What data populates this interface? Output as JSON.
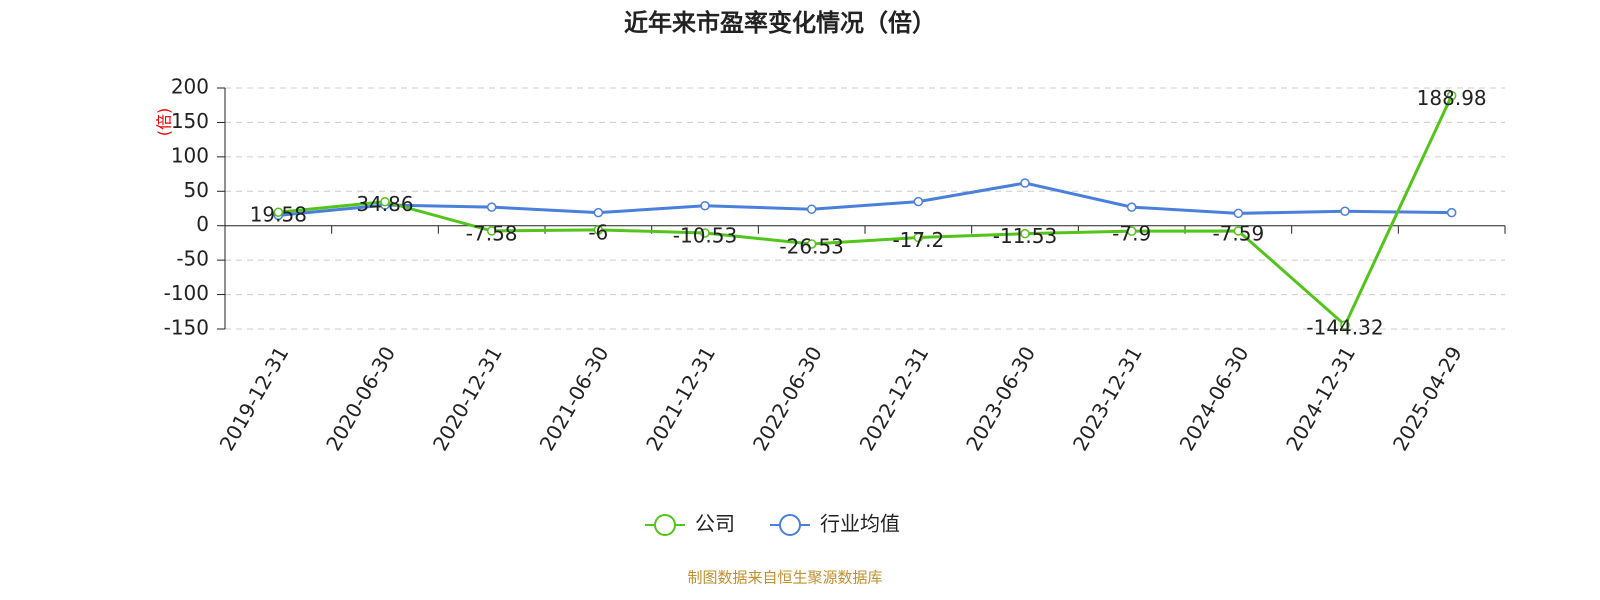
{
  "chart_data": {
    "type": "line",
    "title": "近年来市盈率变化情况（倍）",
    "y_label": "(倍)",
    "categories": [
      "2019-12-31",
      "2020-06-30",
      "2020-12-31",
      "2021-06-30",
      "2021-12-31",
      "2022-06-30",
      "2022-12-31",
      "2023-06-30",
      "2023-12-31",
      "2024-06-30",
      "2024-12-31",
      "2025-04-29"
    ],
    "series": [
      {
        "name": "公司",
        "color": "#52c41a",
        "values": [
          19.58,
          34.86,
          -7.58,
          -6,
          -10.53,
          -26.53,
          -17.2,
          -11.53,
          -7.9,
          -7.59,
          -144.32,
          188.98
        ],
        "data_labels": true
      },
      {
        "name": "行业均值",
        "color": "#4a7fdc",
        "values": [
          15,
          30,
          27,
          19,
          29,
          24,
          35,
          62,
          27,
          18,
          21,
          19
        ],
        "data_labels": false
      }
    ],
    "ylim": [
      -150,
      200
    ],
    "yticks": [
      -150,
      -100,
      -50,
      0,
      50,
      100,
      150,
      200
    ],
    "grid": true,
    "legend": "bottom",
    "source": "制图数据来自恒生聚源数据库"
  }
}
